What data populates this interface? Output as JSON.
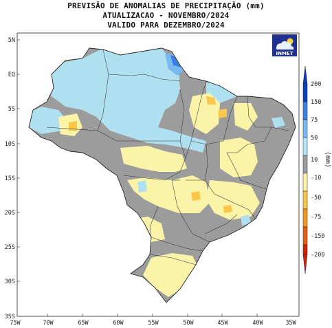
{
  "header": {
    "line1": "PREVISÃO DE ANOMALIAS DE PRECIPITAÇÃO (mm)",
    "line2": "ATUALIZACAO - NOVEMBRO/2024",
    "line3": "VALIDO PARA DEZEMBRO/2024"
  },
  "logo": {
    "text": "INMET",
    "icon": "cloud-sun-icon"
  },
  "axes": {
    "y_ticks": [
      "5N",
      "EQ",
      "5S",
      "10S",
      "15S",
      "20S",
      "25S",
      "30S",
      "35S"
    ],
    "x_ticks": [
      "75W",
      "70W",
      "65W",
      "60W",
      "55W",
      "50W",
      "45W",
      "40W",
      "35W"
    ]
  },
  "colorbar": {
    "unit": "(mm)",
    "labels": [
      "200",
      "150",
      "75",
      "50",
      "10",
      "-10",
      "-50",
      "-75",
      "-150",
      "-200"
    ],
    "colors": [
      "#0c3fbf",
      "#3b7fe0",
      "#79b9f2",
      "#b3e7f7",
      "#9c9c9c",
      "#fbf3a8",
      "#f7c64a",
      "#f29a1d",
      "#ea5a12",
      "#d41f0a"
    ]
  },
  "colors": {
    "neutral": "#9c9c9c",
    "light_blue": "#aee0f0",
    "blue": "#79b9f2",
    "deep_blue": "#3b7fe0",
    "light_yellow": "#fbf3a8",
    "orange": "#f7c64a"
  }
}
